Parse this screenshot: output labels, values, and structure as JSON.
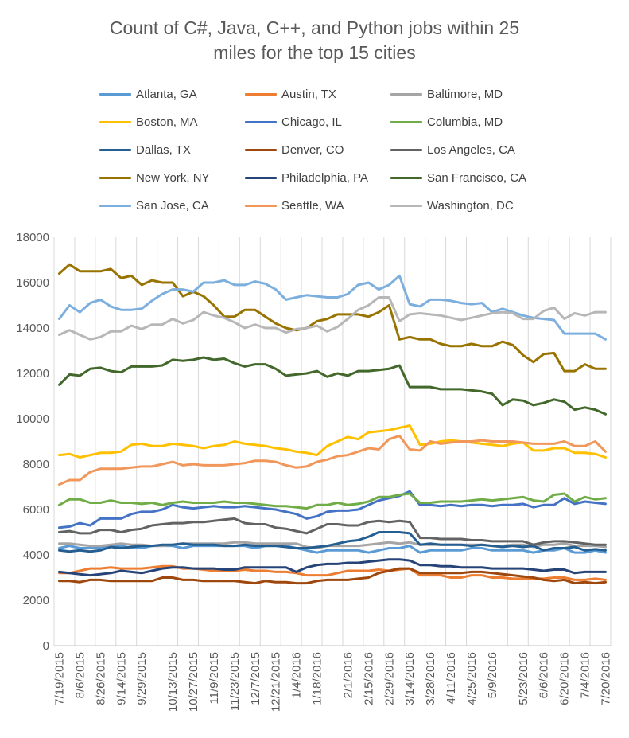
{
  "chart_data": {
    "type": "line",
    "title": "Count of C#, Java, C++, and Python jobs within 25 miles for the top 15 cities",
    "title_lines": [
      "Count of C#, Java, C++, and Python jobs within 25",
      "miles for the top 15 cities"
    ],
    "xlabel": "",
    "ylabel": "",
    "ylim": [
      0,
      18000
    ],
    "yticks": [
      0,
      2000,
      4000,
      6000,
      8000,
      10000,
      12000,
      14000,
      16000,
      18000
    ],
    "grid": "vertical",
    "legend_position": "top",
    "x": [
      "7/19/2015",
      "7/26/2015",
      "8/2/2015",
      "8/9/2015",
      "8/16/2015",
      "8/23/2015",
      "8/30/2015",
      "9/6/2015",
      "9/13/2015",
      "9/20/2015",
      "9/27/2015",
      "10/4/2015",
      "10/11/2015",
      "10/18/2015",
      "10/25/2015",
      "11/1/2015",
      "11/8/2015",
      "11/15/2015",
      "11/22/2015",
      "11/29/2015",
      "12/6/2015",
      "12/13/2015",
      "12/20/2015",
      "12/27/2015",
      "1/3/2016",
      "1/10/2016",
      "1/17/2016",
      "1/24/2016",
      "1/31/2016",
      "2/7/2016",
      "2/14/2016",
      "2/21/2016",
      "2/28/2016",
      "3/6/2016",
      "3/13/2016",
      "3/20/2016",
      "3/27/2016",
      "4/3/2016",
      "4/10/2016",
      "4/17/2016",
      "4/24/2016",
      "5/1/2016",
      "5/8/2016",
      "5/15/2016",
      "5/22/2016",
      "5/29/2016",
      "6/5/2016",
      "6/12/2016",
      "6/19/2016",
      "6/26/2016",
      "7/3/2016",
      "7/10/2016",
      "7/17/2016",
      "7/24/2016"
    ],
    "x_tick_labels": [
      "7/19/2015",
      "8/6/2015",
      "8/26/2015",
      "9/14/2015",
      "9/29/2015",
      "10/13/2015",
      "10/27/2015",
      "11/9/2015",
      "11/23/2015",
      "12/7/2015",
      "12/21/2015",
      "1/4/2016",
      "1/18/2016",
      "2/1/2016",
      "2/15/2016",
      "2/29/2016",
      "3/14/2016",
      "3/28/2016",
      "4/11/2016",
      "4/25/2016",
      "5/9/2016",
      "5/23/2016",
      "6/6/2016",
      "6/20/2016",
      "7/4/2016",
      "7/20/2016"
    ],
    "series": [
      {
        "name": "Atlanta, GA",
        "color": "#5B9BD5",
        "values": [
          4300,
          4400,
          4300,
          4300,
          4300,
          4400,
          4400,
          4300,
          4300,
          4400,
          4400,
          4400,
          4300,
          4400,
          4400,
          4400,
          4400,
          4400,
          4400,
          4300,
          4400,
          4400,
          4400,
          4300,
          4200,
          4100,
          4200,
          4200,
          4200,
          4200,
          4100,
          4200,
          4300,
          4300,
          4400,
          4100,
          4200,
          4200,
          4200,
          4200,
          4300,
          4300,
          4200,
          4200,
          4200,
          4200,
          4100,
          4200,
          4200,
          4300,
          4100,
          4100,
          4200,
          4100
        ]
      },
      {
        "name": "Austin, TX",
        "color": "#ED7D31",
        "values": [
          3200,
          3200,
          3300,
          3400,
          3400,
          3450,
          3400,
          3400,
          3400,
          3450,
          3500,
          3500,
          3400,
          3400,
          3350,
          3300,
          3300,
          3300,
          3350,
          3300,
          3300,
          3250,
          3250,
          3200,
          3100,
          3100,
          3100,
          3200,
          3300,
          3300,
          3300,
          3350,
          3300,
          3350,
          3400,
          3100,
          3100,
          3100,
          3000,
          3000,
          3100,
          3100,
          3000,
          3000,
          2950,
          2950,
          2950,
          2950,
          3000,
          3000,
          2900,
          2900,
          2950,
          2900
        ]
      },
      {
        "name": "Baltimore, MD",
        "color": "#A5A5A5",
        "values": [
          4500,
          4500,
          4450,
          4400,
          4400,
          4450,
          4500,
          4450,
          4450,
          4400,
          4400,
          4450,
          4500,
          4500,
          4500,
          4500,
          4500,
          4550,
          4550,
          4500,
          4500,
          4500,
          4500,
          4500,
          4350,
          4300,
          4400,
          4400,
          4400,
          4400,
          4450,
          4500,
          4550,
          4500,
          4550,
          4450,
          4450,
          4450,
          4450,
          4450,
          4450,
          4450,
          4400,
          4400,
          4450,
          4450,
          4350,
          4450,
          4450,
          4500,
          4400,
          4400,
          4400,
          4350
        ]
      },
      {
        "name": "Boston, MA",
        "color": "#FFC000",
        "values": [
          8400,
          8450,
          8300,
          8400,
          8500,
          8500,
          8550,
          8850,
          8900,
          8800,
          8800,
          8900,
          8850,
          8800,
          8700,
          8800,
          8850,
          9000,
          8900,
          8850,
          8800,
          8700,
          8650,
          8550,
          8500,
          8400,
          8800,
          9000,
          9200,
          9100,
          9400,
          9450,
          9500,
          9600,
          9700,
          8850,
          8900,
          9000,
          9050,
          9000,
          8950,
          8900,
          8850,
          8800,
          8900,
          8950,
          8600,
          8600,
          8700,
          8700,
          8500,
          8500,
          8450,
          8300
        ]
      },
      {
        "name": "Chicago, IL",
        "color": "#4472C4",
        "values": [
          5200,
          5250,
          5400,
          5300,
          5600,
          5600,
          5600,
          5800,
          5900,
          5900,
          6000,
          6200,
          6100,
          6050,
          6100,
          6150,
          6100,
          6100,
          6150,
          6100,
          6050,
          6000,
          5900,
          5800,
          5600,
          5700,
          5900,
          5950,
          5950,
          6000,
          6200,
          6400,
          6500,
          6600,
          6800,
          6200,
          6200,
          6150,
          6200,
          6150,
          6200,
          6200,
          6150,
          6200,
          6200,
          6250,
          6100,
          6200,
          6200,
          6500,
          6250,
          6350,
          6300,
          6250
        ]
      },
      {
        "name": "Columbia, MD",
        "color": "#70AD47",
        "values": [
          6200,
          6450,
          6450,
          6300,
          6300,
          6400,
          6300,
          6300,
          6250,
          6300,
          6200,
          6300,
          6350,
          6300,
          6300,
          6300,
          6350,
          6300,
          6300,
          6250,
          6200,
          6150,
          6150,
          6100,
          6050,
          6200,
          6200,
          6300,
          6200,
          6250,
          6350,
          6550,
          6550,
          6650,
          6700,
          6300,
          6300,
          6350,
          6350,
          6350,
          6400,
          6450,
          6400,
          6450,
          6500,
          6550,
          6400,
          6350,
          6650,
          6700,
          6350,
          6550,
          6450,
          6500
        ]
      },
      {
        "name": "Dallas, TX",
        "color": "#255E91",
        "values": [
          4200,
          4150,
          4200,
          4150,
          4200,
          4350,
          4300,
          4350,
          4400,
          4400,
          4450,
          4450,
          4500,
          4450,
          4450,
          4450,
          4400,
          4400,
          4450,
          4400,
          4400,
          4400,
          4350,
          4300,
          4300,
          4350,
          4400,
          4500,
          4600,
          4650,
          4800,
          5000,
          5000,
          5000,
          4950,
          4450,
          4500,
          4450,
          4450,
          4450,
          4400,
          4450,
          4400,
          4350,
          4400,
          4350,
          4400,
          4200,
          4300,
          4300,
          4350,
          4200,
          4250,
          4200
        ]
      },
      {
        "name": "Denver, CO",
        "color": "#9E480E",
        "values": [
          2850,
          2850,
          2800,
          2900,
          2900,
          2850,
          2850,
          2850,
          2850,
          2850,
          3000,
          3000,
          2900,
          2900,
          2850,
          2850,
          2850,
          2850,
          2800,
          2750,
          2850,
          2800,
          2800,
          2750,
          2750,
          2850,
          2900,
          2900,
          2900,
          2950,
          3000,
          3200,
          3300,
          3400,
          3400,
          3200,
          3200,
          3200,
          3200,
          3200,
          3250,
          3250,
          3200,
          3150,
          3100,
          3050,
          3000,
          2900,
          2850,
          2900,
          2750,
          2800,
          2750,
          2800
        ]
      },
      {
        "name": "Los Angeles, CA",
        "color": "#636363",
        "values": [
          5000,
          5050,
          4950,
          4950,
          5100,
          5100,
          5000,
          5100,
          5150,
          5300,
          5350,
          5400,
          5400,
          5450,
          5450,
          5500,
          5550,
          5600,
          5400,
          5350,
          5350,
          5200,
          5150,
          5050,
          4950,
          5150,
          5350,
          5350,
          5300,
          5300,
          5450,
          5500,
          5450,
          5500,
          5450,
          4750,
          4750,
          4700,
          4700,
          4700,
          4650,
          4650,
          4600,
          4600,
          4600,
          4600,
          4450,
          4550,
          4600,
          4600,
          4550,
          4500,
          4450,
          4450
        ]
      },
      {
        "name": "New York, NY",
        "color": "#997300",
        "values": [
          16400,
          16800,
          16500,
          16500,
          16500,
          16600,
          16200,
          16300,
          15900,
          16100,
          16000,
          16000,
          15400,
          15600,
          15400,
          15000,
          14500,
          14500,
          14800,
          14800,
          14500,
          14200,
          14000,
          13900,
          14000,
          14300,
          14400,
          14600,
          14600,
          14600,
          14500,
          14700,
          15000,
          13500,
          13600,
          13500,
          13500,
          13300,
          13200,
          13200,
          13300,
          13200,
          13200,
          13400,
          13250,
          12800,
          12500,
          12850,
          12900,
          12100,
          12100,
          12400,
          12200,
          12200
        ]
      },
      {
        "name": "Philadelphia, PA",
        "color": "#264478",
        "values": [
          3250,
          3200,
          3150,
          3100,
          3150,
          3200,
          3300,
          3250,
          3200,
          3300,
          3400,
          3450,
          3450,
          3400,
          3400,
          3400,
          3350,
          3350,
          3450,
          3450,
          3450,
          3450,
          3450,
          3250,
          3450,
          3550,
          3600,
          3600,
          3650,
          3650,
          3700,
          3750,
          3800,
          3800,
          3750,
          3550,
          3550,
          3500,
          3500,
          3450,
          3450,
          3450,
          3400,
          3400,
          3400,
          3400,
          3350,
          3300,
          3350,
          3350,
          3200,
          3250,
          3250,
          3250
        ]
      },
      {
        "name": "San Francisco, CA",
        "color": "#43682B",
        "values": [
          11500,
          11950,
          11900,
          12200,
          12250,
          12100,
          12050,
          12300,
          12300,
          12300,
          12350,
          12600,
          12550,
          12600,
          12700,
          12600,
          12650,
          12450,
          12300,
          12400,
          12400,
          12200,
          11900,
          11950,
          12000,
          12100,
          11850,
          12000,
          11900,
          12100,
          12100,
          12150,
          12200,
          12350,
          11400,
          11400,
          11400,
          11300,
          11300,
          11300,
          11250,
          11200,
          11100,
          10600,
          10850,
          10800,
          10600,
          10700,
          10850,
          10750,
          10400,
          10500,
          10400,
          10200
        ]
      },
      {
        "name": "San Jose, CA",
        "color": "#7CAFDD",
        "values": [
          14400,
          15000,
          14700,
          15100,
          15250,
          14950,
          14800,
          14800,
          14850,
          15200,
          15500,
          15700,
          15700,
          15600,
          16000,
          16000,
          16100,
          15900,
          15900,
          16050,
          15950,
          15700,
          15250,
          15350,
          15450,
          15400,
          15350,
          15350,
          15500,
          15900,
          16000,
          15700,
          15900,
          16300,
          15050,
          14950,
          15250,
          15250,
          15200,
          15100,
          15050,
          15100,
          14700,
          14850,
          14700,
          14550,
          14450,
          14400,
          14350,
          13750,
          13750,
          13750,
          13750,
          13500
        ]
      },
      {
        "name": "Seattle, WA",
        "color": "#F1975A",
        "values": [
          7100,
          7300,
          7300,
          7650,
          7800,
          7800,
          7800,
          7850,
          7900,
          7900,
          8000,
          8100,
          7950,
          8000,
          7950,
          7950,
          7950,
          8000,
          8050,
          8150,
          8150,
          8100,
          7950,
          7850,
          7900,
          8100,
          8200,
          8350,
          8400,
          8550,
          8700,
          8650,
          9100,
          9250,
          8650,
          8600,
          9000,
          8900,
          8950,
          9000,
          9000,
          9050,
          9000,
          9000,
          9000,
          8950,
          8900,
          8900,
          8900,
          9000,
          8800,
          8800,
          9000,
          8550
        ]
      },
      {
        "name": "Washington, DC",
        "color": "#B7B7B7",
        "values": [
          13700,
          13900,
          13700,
          13500,
          13600,
          13850,
          13850,
          14100,
          13950,
          14150,
          14150,
          14400,
          14200,
          14350,
          14700,
          14550,
          14450,
          14250,
          14000,
          14150,
          14000,
          14000,
          13800,
          13950,
          14000,
          14100,
          13850,
          14050,
          14400,
          14800,
          15000,
          15350,
          15350,
          14300,
          14600,
          14650,
          14600,
          14550,
          14450,
          14350,
          14450,
          14550,
          14650,
          14700,
          14650,
          14400,
          14400,
          14750,
          14900,
          14400,
          14650,
          14550,
          14700,
          14700
        ]
      }
    ]
  }
}
